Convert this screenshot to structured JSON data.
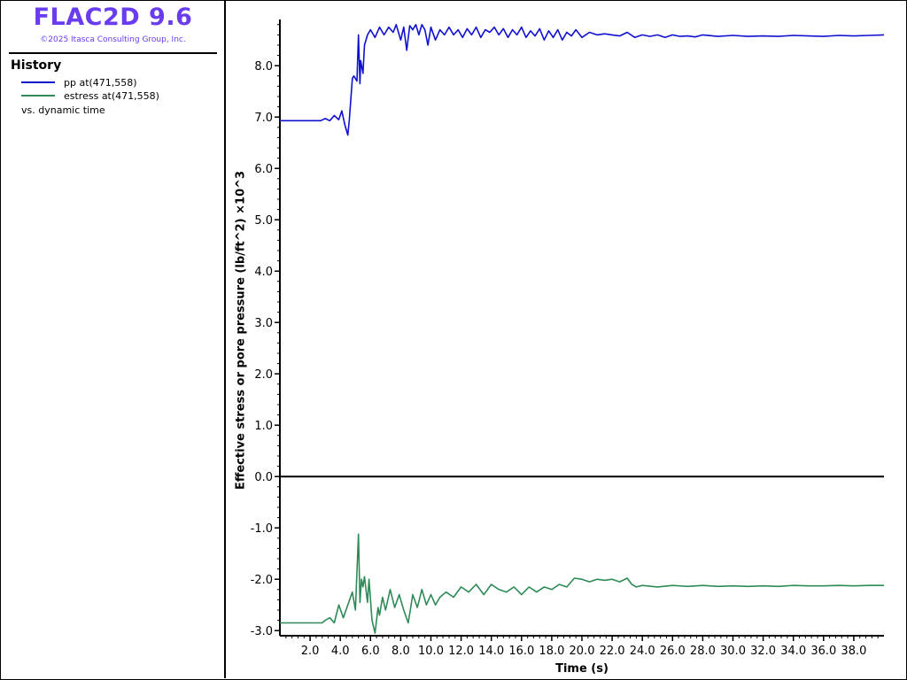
{
  "app": {
    "title": "FLAC2D 9.6",
    "copyright": "©2025 Itasca Consulting Group, Inc."
  },
  "legend": {
    "heading": "History",
    "entries": [
      {
        "label": "pp at(471,558)",
        "color": "#1010d0"
      },
      {
        "label": "estress at(471,558)",
        "color": "#2e8b57"
      }
    ],
    "caption": "vs. dynamic time"
  },
  "chart_data": {
    "type": "line",
    "xlabel": "Time (s)",
    "ylabel": "Effective stress or pore pressure (lb/ft^2) ×10^3",
    "xlim": [
      0.0,
      40.0
    ],
    "ylim": [
      -3.1,
      8.9
    ],
    "xticks": [
      "2.0",
      "4.0",
      "6.0",
      "8.0",
      "10.0",
      "12.0",
      "14.0",
      "16.0",
      "18.0",
      "20.0",
      "22.0",
      "24.0",
      "26.0",
      "28.0",
      "30.0",
      "32.0",
      "34.0",
      "36.0",
      "38.0"
    ],
    "yticks": [
      "-3.0",
      "-2.0",
      "-1.0",
      "0.0",
      "1.0",
      "2.0",
      "3.0",
      "4.0",
      "5.0",
      "6.0",
      "7.0",
      "8.0"
    ],
    "series": [
      {
        "name": "pp at(471,558)",
        "color": "#1010d0",
        "x": [
          0.0,
          2.7,
          3.0,
          3.3,
          3.6,
          3.9,
          4.1,
          4.3,
          4.5,
          4.6,
          4.8,
          4.9,
          5.1,
          5.2,
          5.3,
          5.35,
          5.5,
          5.6,
          5.8,
          6.0,
          6.3,
          6.6,
          6.9,
          7.2,
          7.5,
          7.7,
          8.0,
          8.2,
          8.4,
          8.6,
          8.8,
          9.0,
          9.2,
          9.4,
          9.6,
          9.8,
          10.0,
          10.3,
          10.6,
          10.9,
          11.2,
          11.5,
          11.8,
          12.1,
          12.4,
          12.7,
          13.0,
          13.3,
          13.6,
          13.9,
          14.2,
          14.5,
          14.8,
          15.1,
          15.4,
          15.7,
          16.0,
          16.3,
          16.6,
          16.9,
          17.2,
          17.5,
          17.8,
          18.1,
          18.4,
          18.7,
          19.0,
          19.3,
          19.6,
          20.0,
          20.5,
          21.0,
          21.5,
          22.0,
          22.5,
          23.0,
          23.5,
          24.0,
          24.5,
          25.0,
          25.5,
          26.0,
          26.5,
          27.0,
          27.5,
          28.0,
          29.0,
          30.0,
          31.0,
          32.0,
          33.0,
          34.0,
          35.0,
          36.0,
          37.0,
          38.0,
          39.0,
          40.0
        ],
        "y": [
          6.93,
          6.93,
          6.97,
          6.93,
          7.03,
          6.95,
          7.12,
          6.85,
          6.65,
          6.95,
          7.75,
          7.8,
          7.7,
          8.6,
          7.65,
          8.1,
          7.85,
          8.4,
          8.6,
          8.7,
          8.55,
          8.75,
          8.6,
          8.75,
          8.65,
          8.8,
          8.5,
          8.75,
          8.3,
          8.78,
          8.7,
          8.8,
          8.6,
          8.8,
          8.7,
          8.4,
          8.75,
          8.5,
          8.7,
          8.6,
          8.75,
          8.6,
          8.7,
          8.55,
          8.72,
          8.6,
          8.75,
          8.55,
          8.7,
          8.65,
          8.75,
          8.6,
          8.72,
          8.55,
          8.7,
          8.6,
          8.75,
          8.55,
          8.68,
          8.58,
          8.72,
          8.5,
          8.68,
          8.55,
          8.7,
          8.5,
          8.65,
          8.58,
          8.7,
          8.55,
          8.65,
          8.6,
          8.62,
          8.6,
          8.58,
          8.65,
          8.55,
          8.6,
          8.57,
          8.6,
          8.55,
          8.6,
          8.57,
          8.58,
          8.56,
          8.6,
          8.57,
          8.59,
          8.57,
          8.58,
          8.57,
          8.59,
          8.58,
          8.57,
          8.59,
          8.58,
          8.59,
          8.6
        ]
      },
      {
        "name": "estress at(471,558)",
        "color": "#2e8b57",
        "x": [
          0.0,
          2.8,
          3.0,
          3.3,
          3.6,
          3.9,
          4.2,
          4.5,
          4.8,
          5.0,
          5.2,
          5.3,
          5.4,
          5.5,
          5.6,
          5.8,
          5.9,
          6.1,
          6.3,
          6.5,
          6.6,
          6.8,
          7.0,
          7.3,
          7.6,
          7.9,
          8.2,
          8.5,
          8.8,
          9.1,
          9.4,
          9.7,
          10.0,
          10.3,
          10.6,
          11.0,
          11.5,
          12.0,
          12.5,
          13.0,
          13.5,
          14.0,
          14.5,
          15.0,
          15.5,
          16.0,
          16.5,
          17.0,
          17.5,
          18.0,
          18.5,
          19.0,
          19.5,
          20.0,
          20.5,
          21.0,
          21.5,
          22.0,
          22.5,
          23.0,
          23.3,
          23.6,
          24.0,
          25.0,
          26.0,
          27.0,
          28.0,
          29.0,
          30.0,
          31.0,
          32.0,
          33.0,
          34.0,
          35.0,
          36.0,
          37.0,
          38.0,
          39.0,
          40.0
        ],
        "y": [
          -2.85,
          -2.85,
          -2.8,
          -2.75,
          -2.85,
          -2.5,
          -2.75,
          -2.5,
          -2.25,
          -2.6,
          -1.12,
          -2.45,
          -2.0,
          -2.15,
          -1.95,
          -2.45,
          -2.0,
          -2.8,
          -3.05,
          -2.55,
          -2.7,
          -2.35,
          -2.6,
          -2.2,
          -2.55,
          -2.3,
          -2.6,
          -2.85,
          -2.3,
          -2.55,
          -2.2,
          -2.5,
          -2.3,
          -2.5,
          -2.35,
          -2.25,
          -2.35,
          -2.15,
          -2.25,
          -2.1,
          -2.3,
          -2.1,
          -2.2,
          -2.25,
          -2.15,
          -2.3,
          -2.15,
          -2.25,
          -2.15,
          -2.2,
          -2.1,
          -2.15,
          -1.98,
          -2.0,
          -2.05,
          -2.0,
          -2.02,
          -2.0,
          -2.05,
          -1.98,
          -2.1,
          -2.15,
          -2.12,
          -2.15,
          -2.12,
          -2.14,
          -2.12,
          -2.14,
          -2.13,
          -2.14,
          -2.13,
          -2.14,
          -2.12,
          -2.13,
          -2.13,
          -2.12,
          -2.13,
          -2.12,
          -2.12
        ]
      }
    ]
  }
}
